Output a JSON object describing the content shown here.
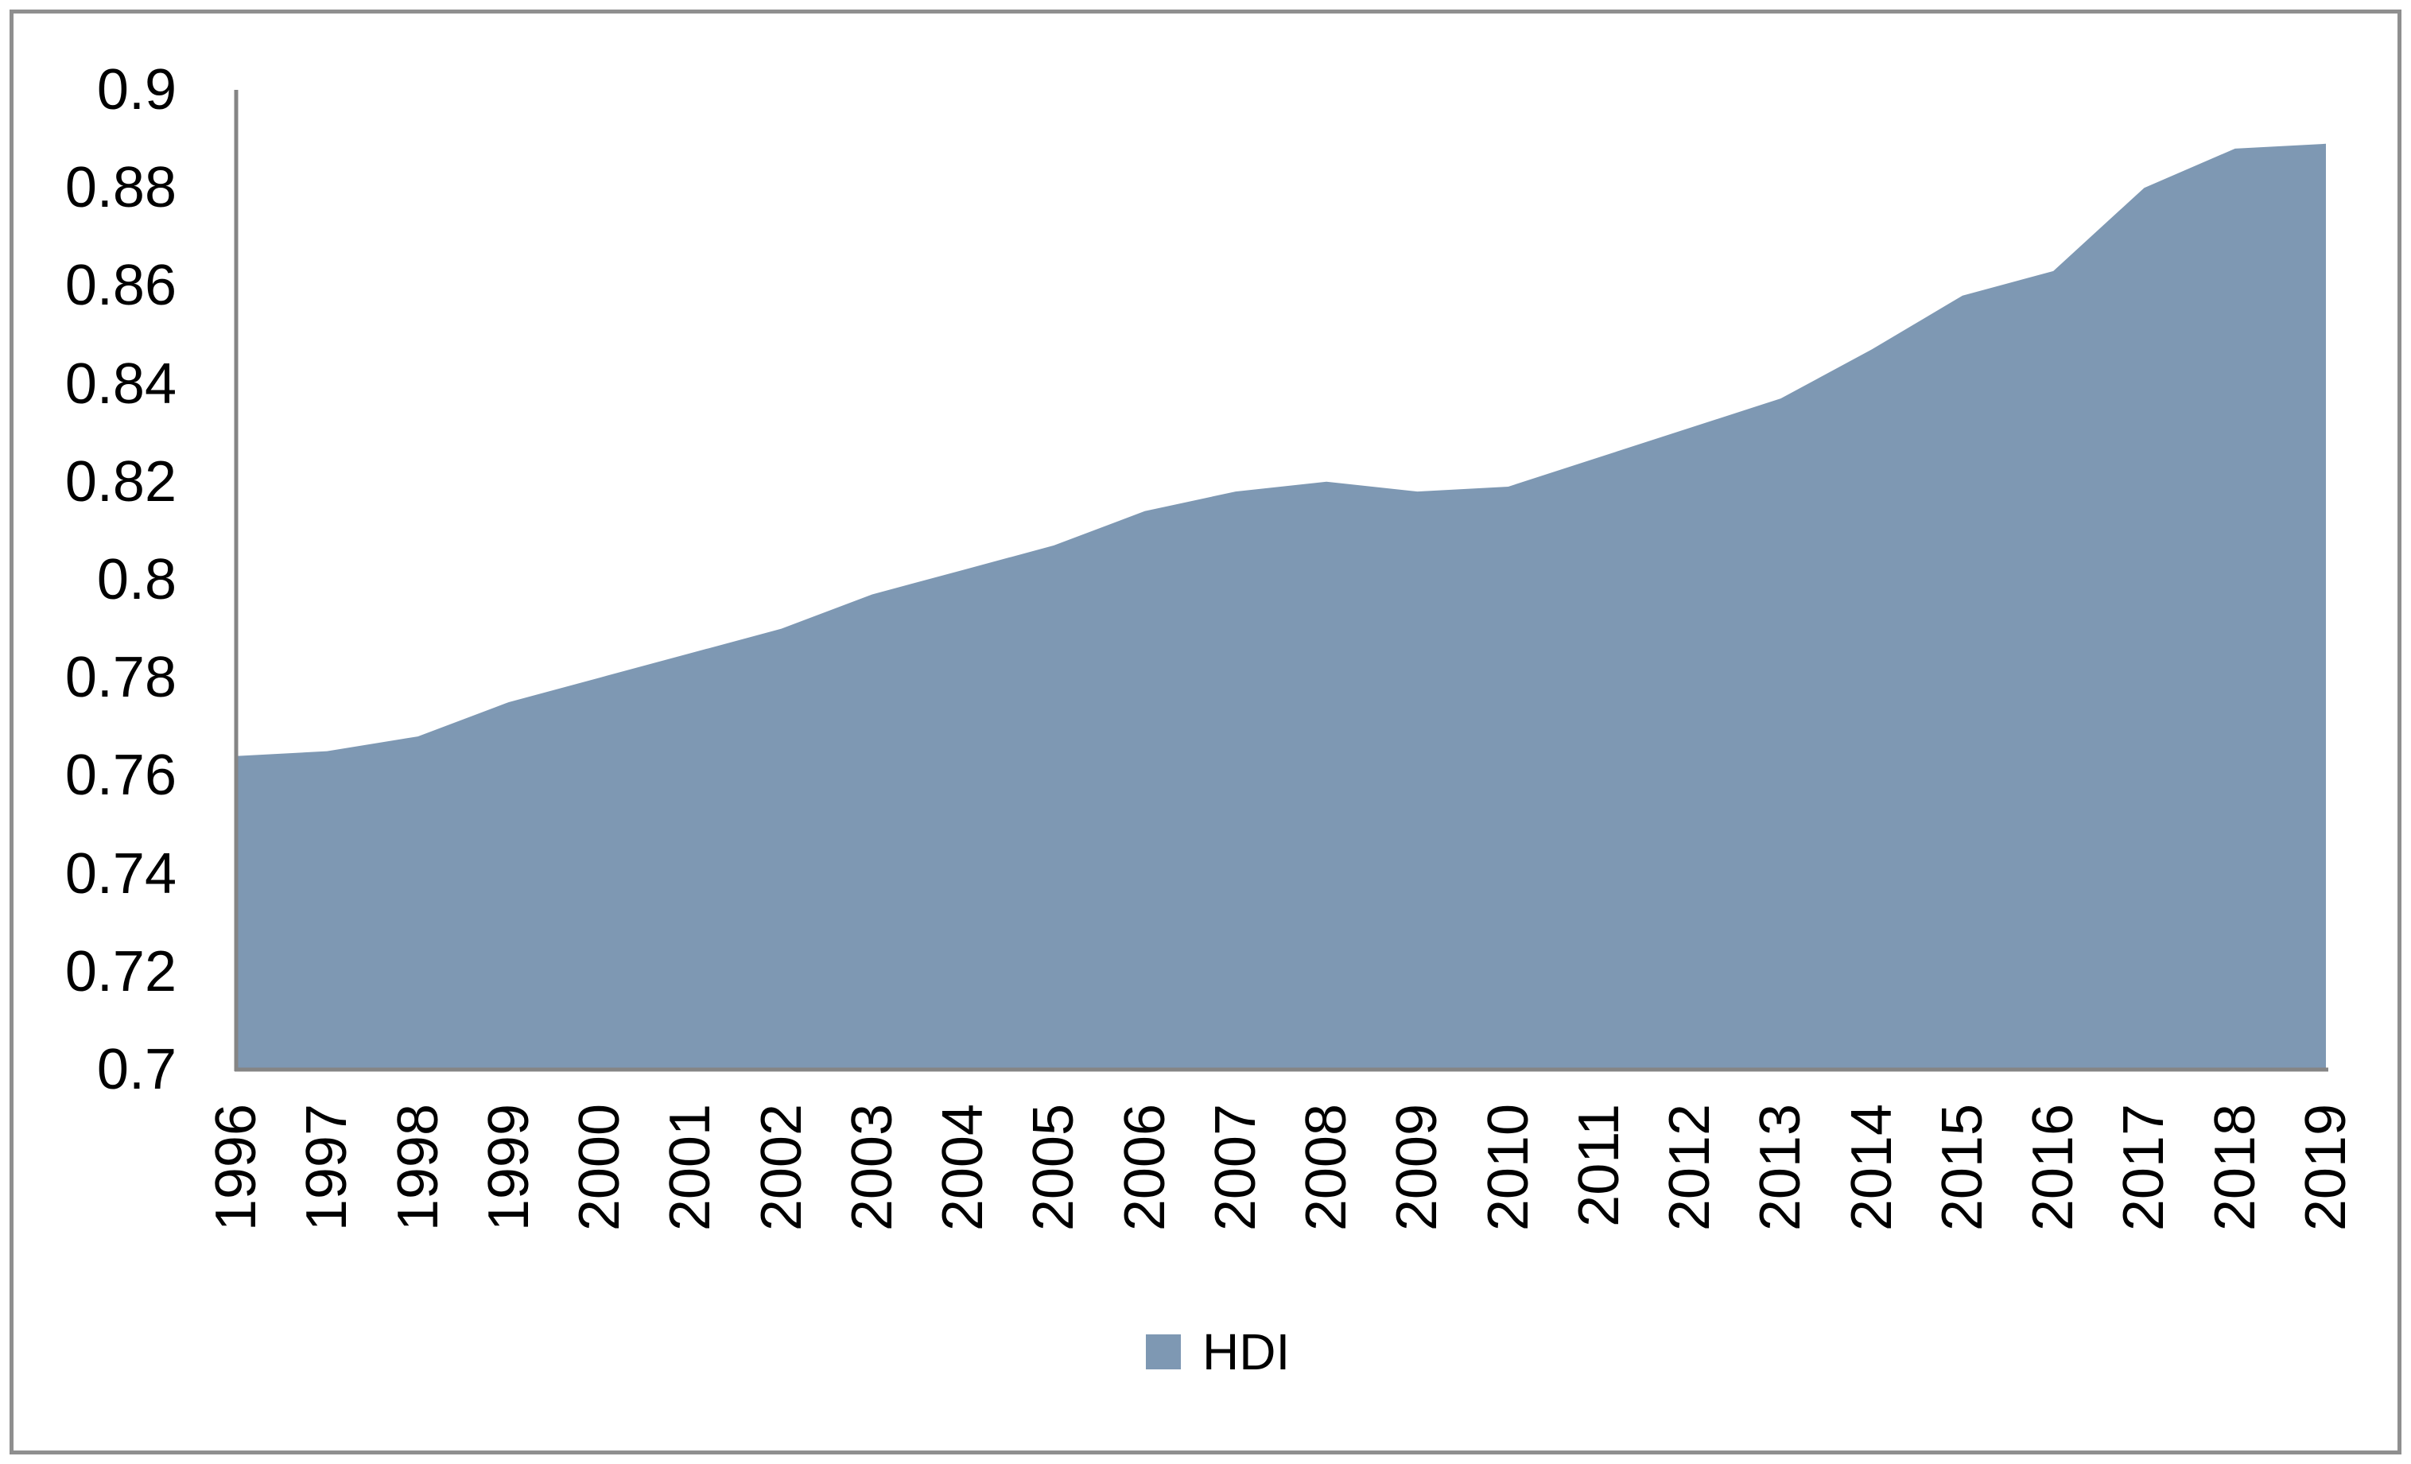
{
  "chart_data": {
    "type": "area",
    "title": "",
    "xlabel": "",
    "ylabel": "",
    "categories": [
      "1996",
      "1997",
      "1998",
      "1999",
      "2000",
      "2001",
      "2002",
      "2003",
      "2004",
      "2005",
      "2006",
      "2007",
      "2008",
      "2009",
      "2010",
      "2011",
      "2012",
      "2013",
      "2014",
      "2015",
      "2016",
      "2017",
      "2018",
      "2019"
    ],
    "series": [
      {
        "name": "HDI",
        "color": "#7E98B3",
        "values": [
          0.764,
          0.765,
          0.768,
          0.775,
          0.78,
          0.785,
          0.79,
          0.797,
          0.802,
          0.807,
          0.814,
          0.818,
          0.82,
          0.818,
          0.819,
          0.825,
          0.831,
          0.837,
          0.847,
          0.858,
          0.863,
          0.88,
          0.888,
          0.889
        ]
      }
    ],
    "ylim": [
      0.7,
      0.9
    ],
    "ytick_step": 0.02,
    "ytick_labels": [
      "0.9",
      "0.88",
      "0.86",
      "0.84",
      "0.82",
      "0.8",
      "0.78",
      "0.76",
      "0.74",
      "0.72",
      "0.7"
    ],
    "grid": false,
    "legend_position": "bottom"
  },
  "legend": {
    "hdi_label": "HDI",
    "marker_color": "#7E98B3"
  },
  "frame": {
    "border_color": "#8f8f8f",
    "axis_color": "#858585",
    "background": "#ffffff",
    "text_color": "#000000"
  }
}
